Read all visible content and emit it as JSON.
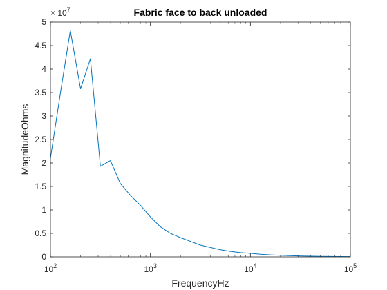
{
  "chart_data": {
    "type": "line",
    "title": "Fabric face to back unloaded",
    "xlabel": "FrequencyHz",
    "ylabel": "MagnitudeOhms",
    "x_scale": "log",
    "xlim": [
      100,
      100000
    ],
    "ylim": [
      0,
      50000000
    ],
    "y_exponent_label": "× 10",
    "y_exponent_power": "7",
    "x_ticks": [
      100,
      1000,
      10000,
      100000
    ],
    "x_tick_base": "10",
    "x_tick_powers": [
      "2",
      "3",
      "4",
      "5"
    ],
    "y_ticks": [
      0,
      5000000,
      10000000,
      15000000,
      20000000,
      25000000,
      30000000,
      35000000,
      40000000,
      45000000,
      50000000
    ],
    "y_tick_labels": [
      "0",
      "0.5",
      "1",
      "1.5",
      "2",
      "2.5",
      "3",
      "3.5",
      "4",
      "4.5",
      "5"
    ],
    "grid": false,
    "box": true,
    "series": [
      {
        "color": "#0072bd",
        "x": [
          100,
          126,
          158,
          200,
          251,
          316,
          398,
          501,
          631,
          794,
          1000,
          1259,
          1585,
          1995,
          2512,
          3162,
          3981,
          5012,
          6310,
          7943,
          10000,
          12589,
          15849,
          19953,
          25119,
          31623,
          39811,
          50119,
          63096,
          79433,
          100000
        ],
        "y": [
          21000000,
          35000000,
          48200000,
          35800000,
          42200000,
          19300000,
          20500000,
          15600000,
          13100000,
          11000000,
          8500000,
          6400000,
          5000000,
          4100000,
          3300000,
          2500000,
          2000000,
          1500000,
          1150000,
          900000,
          750000,
          560000,
          430000,
          330000,
          250000,
          190000,
          145000,
          110000,
          85000,
          65000,
          50000
        ]
      }
    ]
  }
}
